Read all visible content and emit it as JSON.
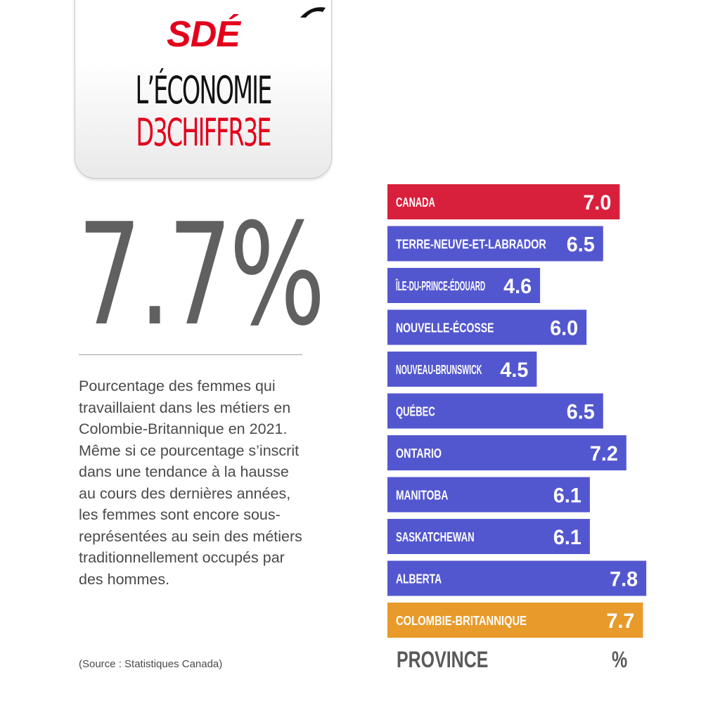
{
  "header": {
    "logo": "SDÉ",
    "title_line1": "L’ÉCONOMIE",
    "title_line2": "D3CHIFFR3E"
  },
  "headline_value": "7.7%",
  "description": "Pourcentage des femmes qui travaillaient dans les métiers en Colombie-Britannique en 2021. Même si ce pourcentage s’inscrit dans une tendance à la hausse au cours des dernières années, les femmes sont encore sous-représentées au sein des métiers traditionnellement occupés par des hommes.",
  "source": "(Source : Statistiques Canada)",
  "colors": {
    "brand_red": "#e3001b",
    "canada_bar": "#d8203c",
    "province_bar": "#5357cf",
    "bc_bar": "#e89a2a"
  },
  "chart_data": {
    "type": "bar",
    "orientation": "horizontal",
    "xlabel": "PROVINCE",
    "ylabel": "%",
    "categories": [
      "CANADA",
      "TERRE-NEUVE-ET-LABRADOR",
      "ÎLE-DU-PRINCE-ÉDOUARD",
      "NOUVELLE-ÉCOSSE",
      "NOUVEAU-BRUNSWICK",
      "QUÉBEC",
      "ONTARIO",
      "MANITOBA",
      "SASKATCHEWAN",
      "ALBERTA",
      "COLOMBIE-BRITANNIQUE"
    ],
    "values": [
      7.0,
      6.5,
      4.6,
      6.0,
      4.5,
      6.5,
      7.2,
      6.1,
      6.1,
      7.8,
      7.7
    ],
    "value_labels": [
      "7.0",
      "6.5",
      "4.6",
      "6.0",
      "4.5",
      "6.5",
      "7.2",
      "6.1",
      "6.1",
      "7.8",
      "7.7"
    ],
    "highlight": {
      "CANADA": "#d8203c",
      "COLOMBIE-BRITANNIQUE": "#e89a2a"
    },
    "default_color": "#5357cf"
  }
}
